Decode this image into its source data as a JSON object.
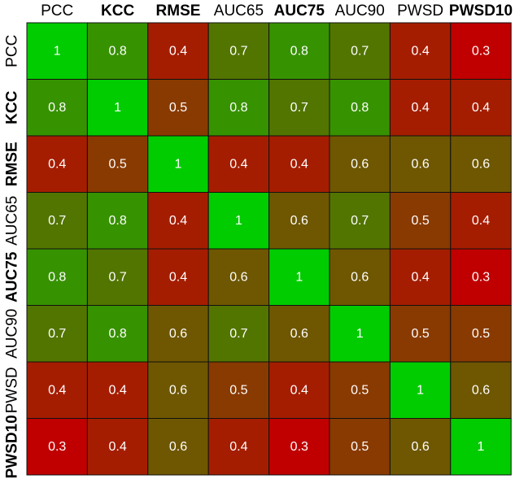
{
  "chart_data": {
    "type": "heatmap",
    "labels": [
      "PCC",
      "KCC",
      "RMSE",
      "AUC65",
      "AUC75",
      "AUC90",
      "PWSD",
      "PWSD10"
    ],
    "bold_labels": [
      "KCC",
      "RMSE",
      "AUC75",
      "PWSD10"
    ],
    "values": [
      [
        1,
        0.8,
        0.4,
        0.7,
        0.8,
        0.7,
        0.4,
        0.3
      ],
      [
        0.8,
        1,
        0.5,
        0.8,
        0.7,
        0.8,
        0.4,
        0.4
      ],
      [
        0.4,
        0.5,
        1,
        0.4,
        0.4,
        0.6,
        0.6,
        0.6
      ],
      [
        0.7,
        0.8,
        0.4,
        1,
        0.6,
        0.7,
        0.5,
        0.4
      ],
      [
        0.8,
        0.7,
        0.4,
        0.6,
        1,
        0.6,
        0.4,
        0.3
      ],
      [
        0.7,
        0.8,
        0.6,
        0.7,
        0.6,
        1,
        0.5,
        0.5
      ],
      [
        0.4,
        0.4,
        0.6,
        0.5,
        0.4,
        0.5,
        1,
        0.6
      ],
      [
        0.3,
        0.4,
        0.6,
        0.4,
        0.3,
        0.5,
        0.6,
        1
      ]
    ],
    "color_scale": {
      "low_color": "#c00000",
      "high_color": "#00cc00",
      "range": [
        0.3,
        1
      ]
    },
    "legend": "none",
    "grid": true
  }
}
